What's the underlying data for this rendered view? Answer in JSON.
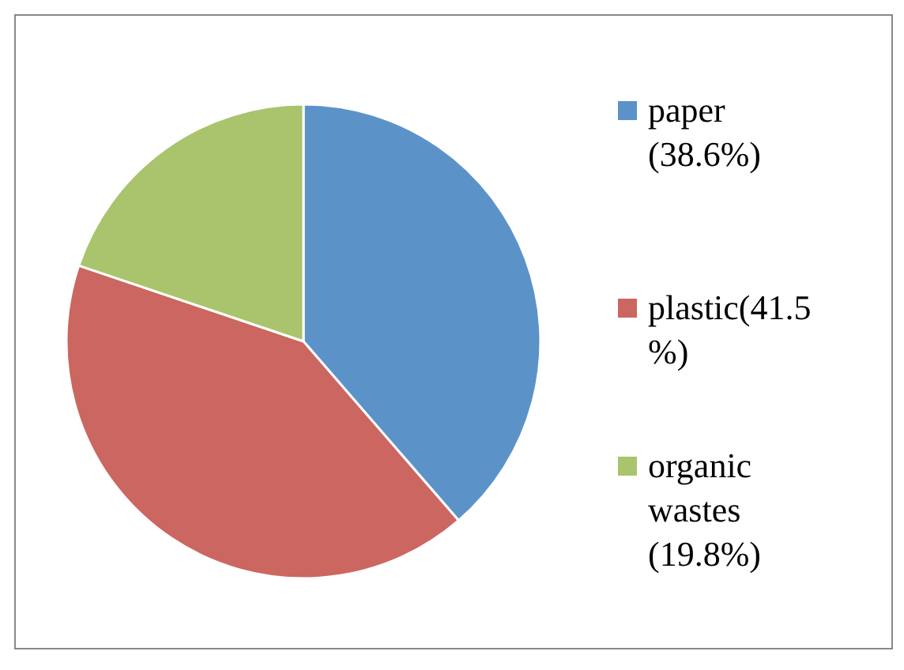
{
  "chart_data": {
    "type": "pie",
    "categories": [
      "paper (38.6%)",
      "plastic(41.5%)",
      "organic wastes (19.8%)"
    ],
    "values": [
      38.6,
      41.5,
      19.8
    ],
    "colors": [
      "#5b93c9",
      "#cc6660",
      "#a9c46c"
    ],
    "legend": "right"
  }
}
